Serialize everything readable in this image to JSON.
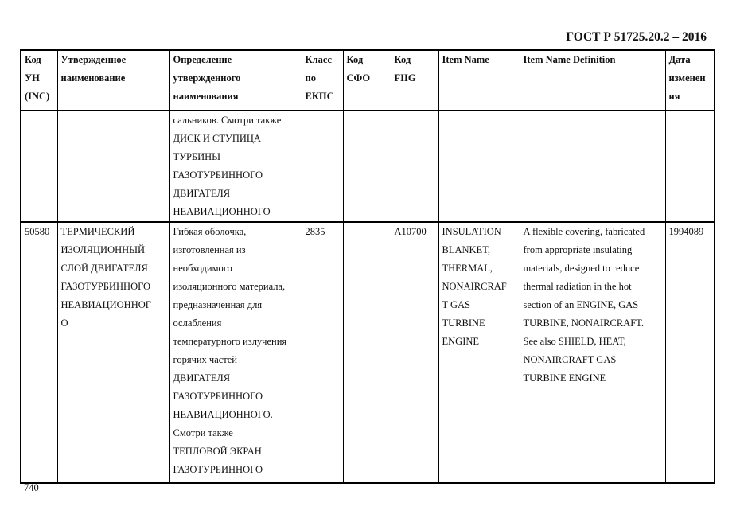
{
  "header": {
    "standard": "ГОСТ Р 51725.20.2 – 2016"
  },
  "columns": [
    [
      "Код",
      "УН",
      "(INC)"
    ],
    [
      "Утвержденное",
      "наименование"
    ],
    [
      "Определение",
      "утвержденного",
      "наименования"
    ],
    [
      "Класс",
      "по",
      "ЕКПС"
    ],
    [
      "Код",
      "СФО"
    ],
    [
      "Код",
      "FIIG"
    ],
    [
      "Item Name"
    ],
    [
      "Item Name Definition"
    ],
    [
      "Дата",
      "изменен",
      "ия"
    ]
  ],
  "rows": [
    [
      [],
      [],
      [
        "сальников. Смотри также",
        "ДИСК И СТУПИЦА",
        "ТУРБИНЫ",
        "ГАЗОТУРБИННОГО",
        "ДВИГАТЕЛЯ",
        "НЕАВИАЦИОННОГО"
      ],
      [],
      [],
      [],
      [],
      [],
      []
    ],
    [
      [
        "50580"
      ],
      [
        "ТЕРМИЧЕСКИЙ",
        "ИЗОЛЯЦИОННЫЙ",
        "СЛОЙ ДВИГАТЕЛЯ",
        "ГАЗОТУРБИННОГО",
        "НЕАВИАЦИОННОГ",
        "О"
      ],
      [
        "Гибкая оболочка,",
        "изготовленная из",
        "необходимого",
        "изоляционного материала,",
        "предназначенная для",
        "ослабления",
        "температурного излучения",
        "горячих частей",
        "ДВИГАТЕЛЯ",
        "ГАЗОТУРБИННОГО",
        "НЕАВИАЦИОННОГО.",
        "Смотри также",
        "ТЕПЛОВОЙ ЭКРАН",
        "ГАЗОТУРБИННОГО"
      ],
      [
        "2835"
      ],
      [],
      [
        "A10700"
      ],
      [
        "INSULATION",
        "BLANKET,",
        "THERMAL,",
        "NONAIRCRAF",
        "T GAS",
        "TURBINE",
        "ENGINE"
      ],
      [
        "A flexible covering, fabricated",
        "from appropriate insulating",
        "materials, designed to reduce",
        "thermal radiation in the hot",
        "section of an ENGINE, GAS",
        "TURBINE, NONAIRCRAFT.",
        "See also SHIELD, HEAT,",
        "NONAIRCRAFT GAS",
        "TURBINE ENGINE"
      ],
      [
        "1994089"
      ]
    ]
  ],
  "footer": {
    "page_number": "740"
  }
}
